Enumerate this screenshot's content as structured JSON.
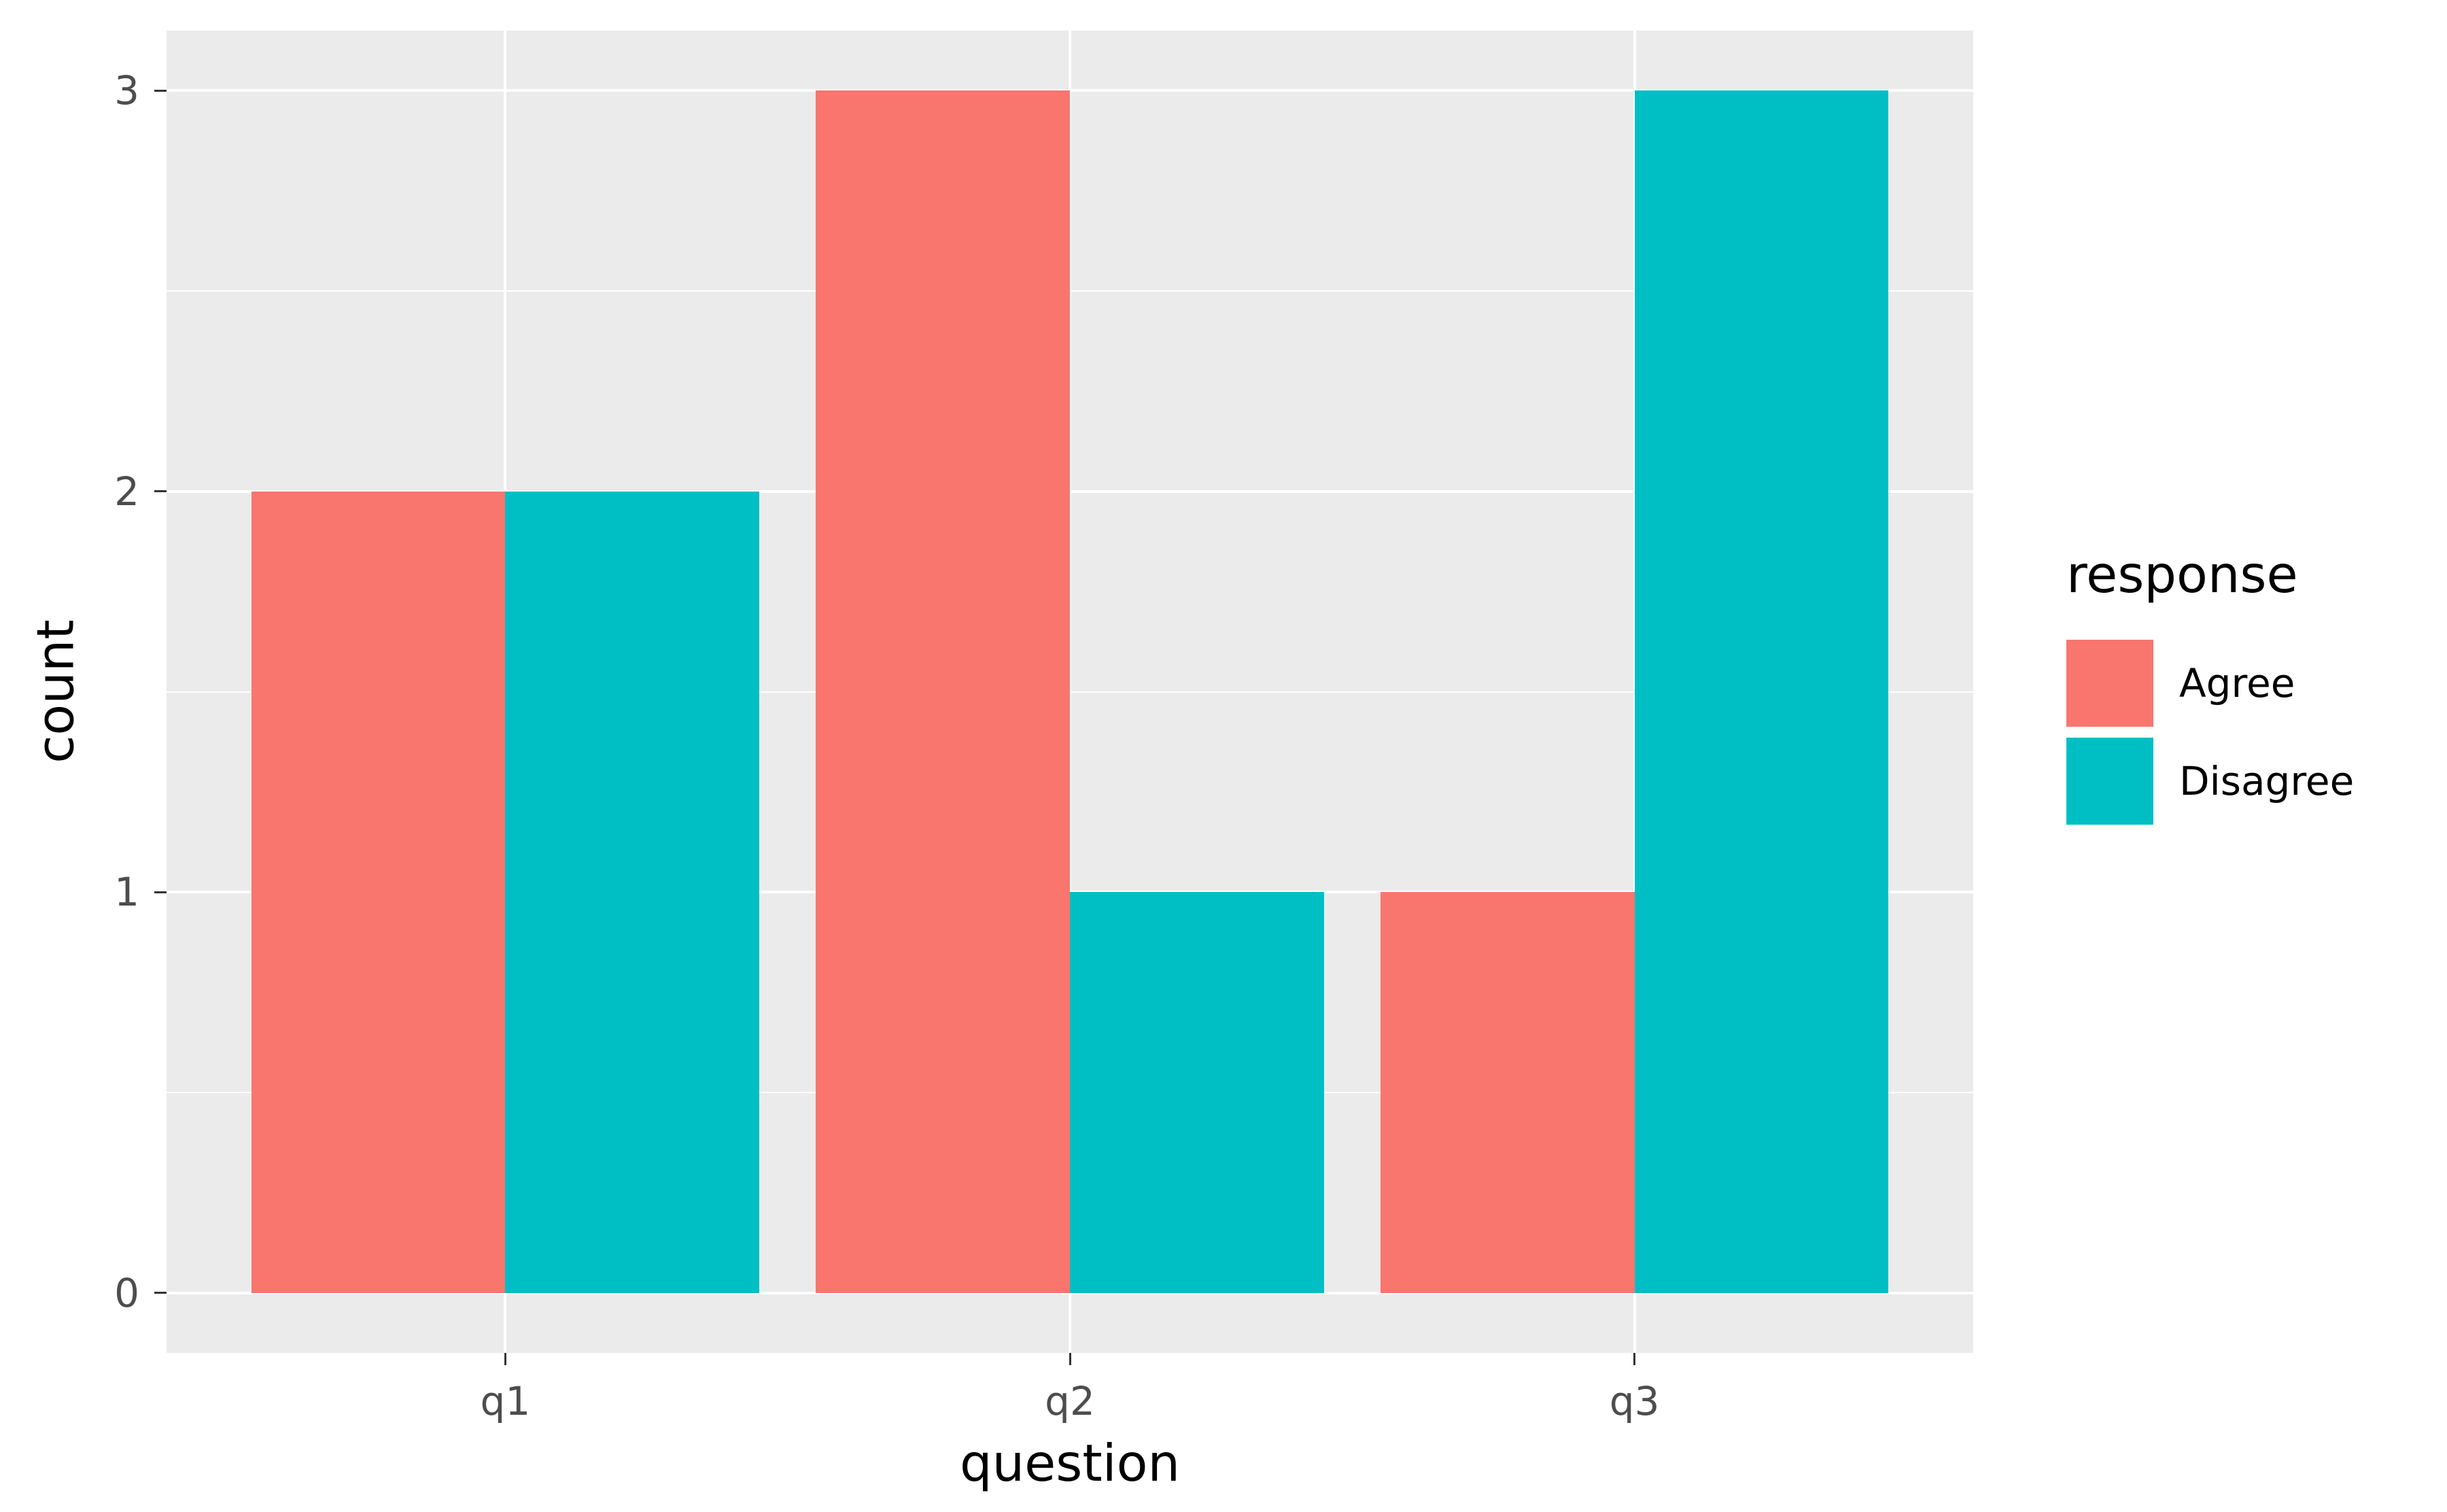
{
  "chart_data": {
    "type": "bar",
    "title": "",
    "xlabel": "question",
    "ylabel": "count",
    "categories": [
      "q1",
      "q2",
      "q3"
    ],
    "series": [
      {
        "name": "Agree",
        "color": "#F8766D",
        "values": [
          2,
          3,
          1
        ]
      },
      {
        "name": "Disagree",
        "color": "#00BFC4",
        "values": [
          2,
          1,
          3
        ]
      }
    ],
    "y_ticks": [
      0,
      1,
      2,
      3
    ],
    "ylim": [
      0,
      3
    ],
    "bar_layout": "dodged",
    "legend_title": "response",
    "legend_position": "right",
    "grid": "horizontal major+minor, vertical major at categories",
    "panel_background": "#EBEBEB",
    "grid_color": "#FFFFFF",
    "tick_color": "#333333",
    "tick_label_color": "#4D4D4D"
  }
}
